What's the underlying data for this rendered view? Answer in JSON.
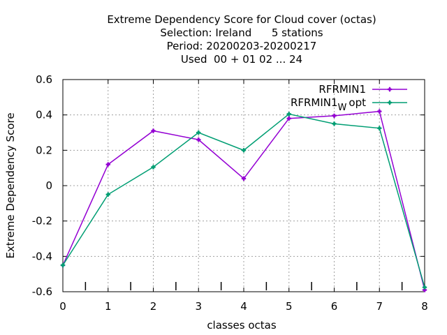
{
  "chart_data": {
    "type": "line",
    "title_lines": [
      "Extreme Dependency Score  for Cloud cover (octas)",
      "Selection: Ireland      5 stations",
      "Period: 20200203-20200217",
      "Used  00 + 01 02 ... 24"
    ],
    "xlabel": "classes octas",
    "ylabel": "Extreme Dependency Score",
    "x": [
      0,
      1,
      2,
      3,
      4,
      5,
      6,
      7,
      8
    ],
    "xlim": [
      0,
      8
    ],
    "ylim": [
      -0.6,
      0.6
    ],
    "x_ticks": [
      "0",
      "1",
      "2",
      "3",
      "4",
      "5",
      "6",
      "7",
      "8"
    ],
    "y_ticks": [
      "0.6",
      "0.4",
      "0.2",
      "0",
      "-0.2",
      "-0.4",
      "-0.6"
    ],
    "grid": true,
    "legend_position": "top-right",
    "series": [
      {
        "name": "RFRMIN1",
        "name_main": "RFRMIN1",
        "name_sub": "",
        "name_suffix": "",
        "color": "#9400d3",
        "values": [
          -0.45,
          0.12,
          0.31,
          0.26,
          0.04,
          0.38,
          0.395,
          0.42,
          -0.59
        ]
      },
      {
        "name": "RFRMIN1_W opt",
        "name_main": "RFRMIN1",
        "name_sub": "W",
        "name_suffix": "opt",
        "color": "#009e73",
        "values": [
          -0.45,
          -0.05,
          0.105,
          0.3,
          0.2,
          0.405,
          0.35,
          0.325,
          -0.575
        ]
      }
    ]
  }
}
